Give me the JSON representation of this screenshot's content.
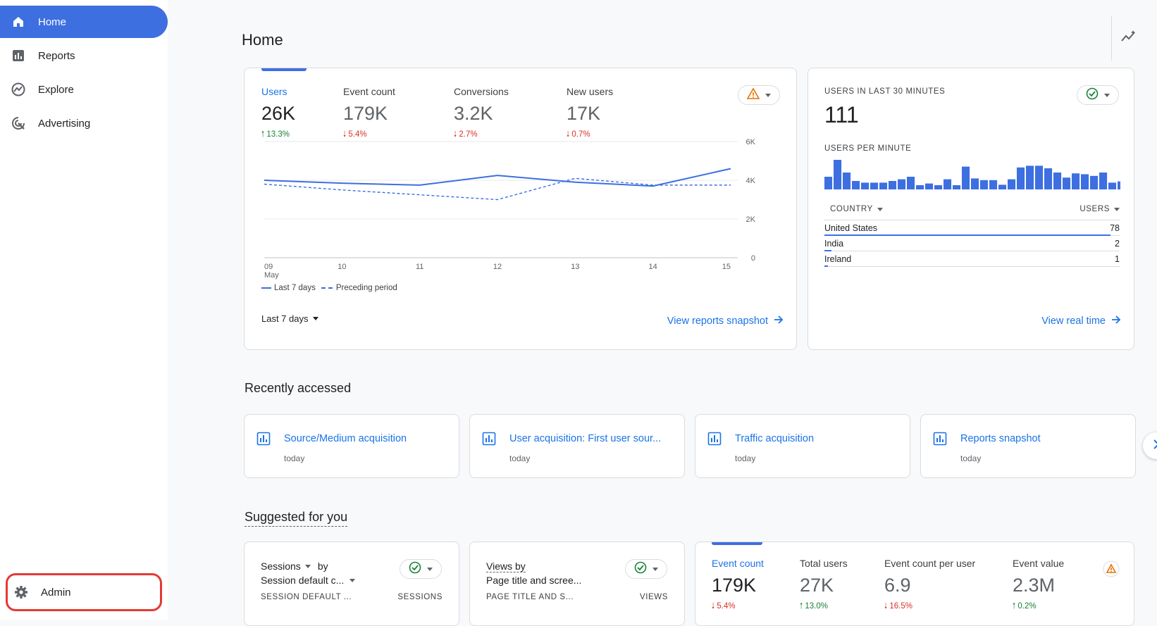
{
  "nav": {
    "items": [
      {
        "label": "Home",
        "icon": "home-icon"
      },
      {
        "label": "Reports",
        "icon": "reports-icon"
      },
      {
        "label": "Explore",
        "icon": "explore-icon"
      },
      {
        "label": "Advertising",
        "icon": "advertising-icon"
      }
    ],
    "admin_label": "Admin"
  },
  "page": {
    "title": "Home"
  },
  "overview": {
    "metrics": [
      {
        "label": "Users",
        "value": "26K",
        "change": "13.3%",
        "direction": "up"
      },
      {
        "label": "Event count",
        "value": "179K",
        "change": "5.4%",
        "direction": "down"
      },
      {
        "label": "Conversions",
        "value": "3.2K",
        "change": "2.7%",
        "direction": "down"
      },
      {
        "label": "New users",
        "value": "17K",
        "change": "0.7%",
        "direction": "down"
      }
    ],
    "y_ticks": [
      "6K",
      "4K",
      "2K",
      "0"
    ],
    "x_ticks": [
      "09",
      "10",
      "11",
      "12",
      "13",
      "14",
      "15"
    ],
    "x_month": "May",
    "legend_current": "Last 7 days",
    "legend_previous": "Preceding period",
    "date_range": "Last 7 days",
    "link": "View reports snapshot"
  },
  "chart_data": {
    "type": "line",
    "x": [
      "09",
      "10",
      "11",
      "12",
      "13",
      "14",
      "15"
    ],
    "ylim": [
      0,
      6000
    ],
    "series": [
      {
        "name": "Last 7 days",
        "values": [
          4000,
          3850,
          3750,
          4250,
          3900,
          3700,
          4600
        ]
      },
      {
        "name": "Preceding period",
        "values": [
          3800,
          3500,
          3250,
          3000,
          4100,
          3750,
          3750
        ]
      }
    ]
  },
  "realtime": {
    "title": "USERS IN LAST 30 MINUTES",
    "value": "111",
    "per_minute_label": "USERS PER MINUTE",
    "bars": [
      3,
      7,
      4,
      2,
      1.6,
      1.6,
      1.6,
      2,
      2.4,
      3,
      1,
      1.4,
      1,
      2.4,
      1,
      5.4,
      2.6,
      2.2,
      2.2,
      1.1,
      2.4,
      5.2,
      5.6,
      5.6,
      5,
      4,
      2.8,
      3.8,
      3.6,
      3.2,
      4,
      1.6,
      1.9,
      3.4,
      0.4
    ],
    "country_header": "COUNTRY",
    "users_header": "USERS",
    "rows": [
      {
        "country": "United States",
        "users": "78",
        "share": 0.97
      },
      {
        "country": "India",
        "users": "2",
        "share": 0.025
      },
      {
        "country": "Ireland",
        "users": "1",
        "share": 0.013
      }
    ],
    "link": "View real time"
  },
  "recent": {
    "title": "Recently accessed",
    "items": [
      {
        "title": "Source/Medium acquisition",
        "sub": "today"
      },
      {
        "title": "User acquisition: First user sour...",
        "sub": "today"
      },
      {
        "title": "Traffic acquisition",
        "sub": "today"
      },
      {
        "title": "Reports snapshot",
        "sub": "today"
      }
    ]
  },
  "suggested": {
    "title": "Suggested for you",
    "card1": {
      "metric": "Sessions",
      "by": "by",
      "dimension": "Session default c...",
      "col1": "SESSION DEFAULT ...",
      "col2": "SESSIONS"
    },
    "card2": {
      "metric": "Views by",
      "dimension": "Page title and scree...",
      "col1": "PAGE TITLE AND S...",
      "col2": "VIEWS"
    },
    "card3": {
      "metrics": [
        {
          "label": "Event count",
          "value": "179K",
          "change": "5.4%",
          "direction": "down"
        },
        {
          "label": "Total users",
          "value": "27K",
          "change": "13.0%",
          "direction": "up"
        },
        {
          "label": "Event count per user",
          "value": "6.9",
          "change": "16.5%",
          "direction": "down"
        },
        {
          "label": "Event value",
          "value": "2.3M",
          "change": "0.2%",
          "direction": "up"
        }
      ]
    }
  },
  "colors": {
    "accent": "#3d6fe0",
    "link": "#1a73e8",
    "up": "#188038",
    "down": "#d93025",
    "warning": "#e37400",
    "ok": "#188038"
  }
}
